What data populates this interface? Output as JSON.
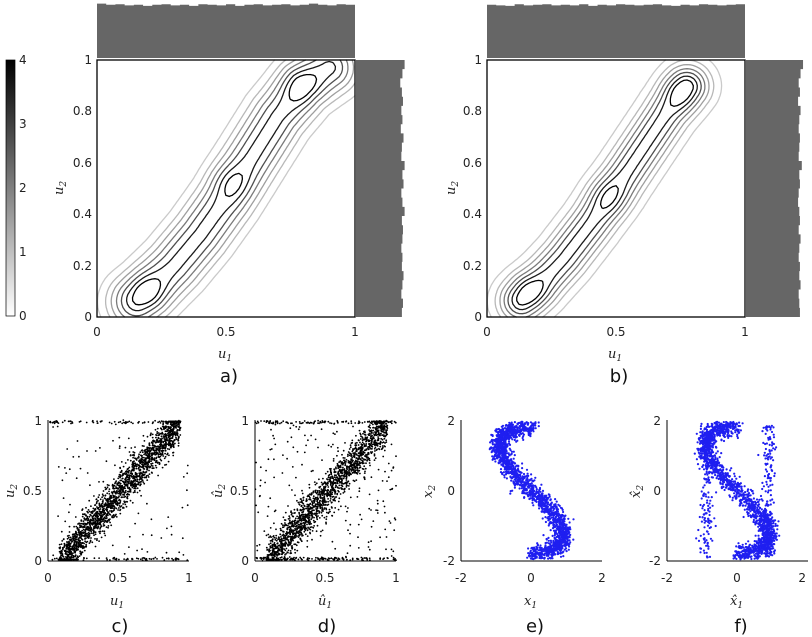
{
  "colorbar": {
    "ticks": [
      "4",
      "3",
      "2",
      "1",
      "0"
    ],
    "range": [
      0,
      4
    ],
    "colormap": [
      "#ffffff",
      "#000000"
    ]
  },
  "colors": {
    "marginal": "#666666",
    "scatter_black": "#000000",
    "scatter_blue": "#1f1ff0",
    "frame": "#000000"
  },
  "panels": [
    {
      "label": "a)",
      "xlabel": "u",
      "xsub": "1",
      "ylabel": "u",
      "ysub": "2",
      "xticks": [
        "0",
        "0.5",
        "1"
      ],
      "yticks": [
        "0",
        "0.2",
        "0.4",
        "0.6",
        "0.8",
        "1"
      ]
    },
    {
      "label": "b)",
      "xlabel": "u",
      "xsub": "1",
      "ylabel": "u",
      "ysub": "2",
      "xticks": [
        "0",
        "0.5",
        "1"
      ],
      "yticks": [
        "0",
        "0.2",
        "0.4",
        "0.6",
        "0.8",
        "1"
      ]
    },
    {
      "label": "c)",
      "xlabel": "u",
      "xsub": "1",
      "ylabel": "u",
      "ysub": "2",
      "xticks": [
        "0",
        "0.5",
        "1"
      ],
      "yticks": [
        "0",
        "0.5",
        "1"
      ]
    },
    {
      "label": "d)",
      "xlabel": "û",
      "xsub": "1",
      "ylabel": "û",
      "ysub": "2",
      "xticks": [
        "0",
        "0.5",
        "1"
      ],
      "yticks": [
        "0",
        "0.5",
        "1"
      ]
    },
    {
      "label": "e)",
      "xlabel": "x",
      "xsub": "1",
      "ylabel": "x",
      "ysub": "2",
      "xticks": [
        "-2",
        "0",
        "2"
      ],
      "yticks": [
        "-2",
        "0",
        "2"
      ]
    },
    {
      "label": "f)",
      "xlabel": "x̂",
      "xsub": "1",
      "ylabel": "x̂",
      "ysub": "2",
      "xticks": [
        "-2",
        "0",
        "2"
      ],
      "yticks": [
        "-2",
        "0",
        "2"
      ]
    }
  ],
  "chart_data": [
    {
      "type": "contour",
      "panel": "a)",
      "xlim": [
        0,
        1
      ],
      "ylim": [
        0,
        1
      ],
      "ridge": {
        "x": [
          0.15,
          0.2,
          0.3,
          0.4,
          0.5,
          0.6,
          0.7,
          0.8,
          0.9
        ],
        "y": [
          0.06,
          0.1,
          0.2,
          0.32,
          0.46,
          0.62,
          0.78,
          0.9,
          0.97
        ]
      },
      "peaks": [
        {
          "x": 0.19,
          "y": 0.1,
          "level": 4
        },
        {
          "x": 0.79,
          "y": 0.9,
          "level": 4
        },
        {
          "x": 0.52,
          "y": 0.52,
          "level": 3.5
        }
      ],
      "top_marginal": [
        0.97,
        0.95,
        0.96,
        0.94,
        0.95,
        0.93,
        0.95,
        0.96,
        0.94,
        0.95,
        0.93,
        0.96,
        0.95,
        0.94,
        0.96,
        0.93,
        0.95,
        0.96,
        0.94,
        0.95,
        0.96,
        0.94,
        0.95,
        0.97,
        0.95,
        0.94,
        0.96,
        0.95
      ],
      "right_marginal": [
        0.9,
        0.86,
        0.82,
        0.85,
        0.87,
        0.84,
        0.86,
        0.83,
        0.88,
        0.85,
        0.84,
        0.9,
        0.86,
        0.88,
        0.84,
        0.86,
        0.9,
        0.85,
        0.87,
        0.86,
        0.84,
        0.86,
        0.85,
        0.88,
        0.86,
        0.84,
        0.87,
        0.85
      ]
    },
    {
      "type": "contour",
      "panel": "b)",
      "xlim": [
        0,
        1
      ],
      "ylim": [
        0,
        1
      ],
      "ridge": {
        "x": [
          0.13,
          0.2,
          0.3,
          0.4,
          0.5,
          0.6,
          0.7,
          0.78
        ],
        "y": [
          0.06,
          0.12,
          0.23,
          0.36,
          0.5,
          0.65,
          0.8,
          0.9
        ]
      },
      "peaks": [
        {
          "x": 0.16,
          "y": 0.1,
          "level": 4
        },
        {
          "x": 0.75,
          "y": 0.88,
          "level": 4
        },
        {
          "x": 0.47,
          "y": 0.47,
          "level": 3.5
        }
      ],
      "top_marginal": [
        0.95,
        0.94,
        0.93,
        0.96,
        0.94,
        0.95,
        0.96,
        0.94,
        0.95,
        0.94,
        0.96,
        0.93,
        0.95,
        0.94,
        0.96,
        0.95,
        0.94,
        0.95,
        0.96,
        0.94,
        0.93,
        0.95,
        0.94,
        0.96,
        0.95,
        0.94,
        0.95,
        0.96
      ],
      "right_marginal": [
        0.92,
        0.88,
        0.85,
        0.87,
        0.84,
        0.88,
        0.86,
        0.85,
        0.87,
        0.86,
        0.85,
        0.9,
        0.86,
        0.87,
        0.85,
        0.84,
        0.86,
        0.87,
        0.85,
        0.88,
        0.86,
        0.85,
        0.87,
        0.86,
        0.88,
        0.85,
        0.86,
        0.87
      ]
    },
    {
      "type": "scatter",
      "panel": "c)",
      "xlim": [
        0,
        1
      ],
      "ylim": [
        0,
        1
      ],
      "color": "#000000",
      "pattern": "band along u2 = 1.1*u1 - 0.1 with clusters near (0.2,0.1) and (0.8,0.95), border points at u2=0 and u2=1",
      "n_points": 2200
    },
    {
      "type": "scatter",
      "panel": "d)",
      "xlim": [
        0,
        1
      ],
      "ylim": [
        0,
        1
      ],
      "color": "#000000",
      "pattern": "band along u2 = 1.1*u1 - 0.1 with more scattered points near borders",
      "n_points": 2200
    },
    {
      "type": "scatter",
      "panel": "e)",
      "xlim": [
        -2,
        2
      ],
      "ylim": [
        -2,
        2
      ],
      "color": "#1f1ff0",
      "pattern": "S-shaped curve from (-0.8,1.8) through (0,0) to (0.7,-1.8)",
      "n_points": 2000
    },
    {
      "type": "scatter",
      "panel": "f)",
      "xlim": [
        -2,
        2
      ],
      "ylim": [
        -2,
        2
      ],
      "color": "#1f1ff0",
      "pattern": "S-shaped curve with vertical streaks near x=-0.9 and x=0.9",
      "n_points": 2000
    }
  ]
}
